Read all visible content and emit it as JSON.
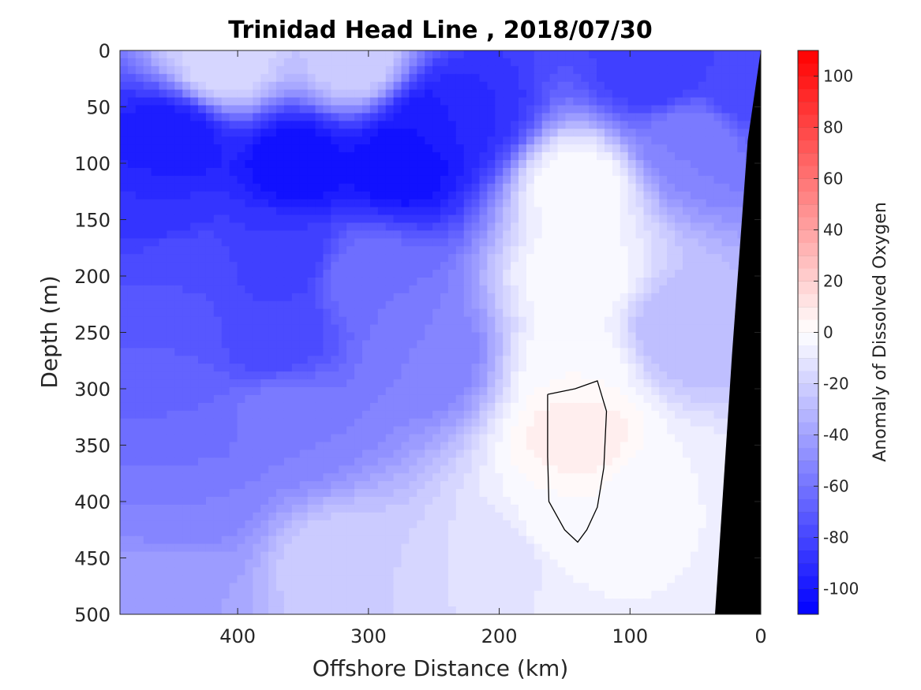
{
  "chart_data": {
    "type": "heatmap",
    "title": "Trinidad Head Line , 2018/07/30",
    "xlabel": "Offshore Distance (km)",
    "ylabel": "Depth (m)",
    "colorbar_label": "Anomaly of Dissolved Oxygen",
    "xlim": [
      0,
      490
    ],
    "x_reversed": true,
    "ylim": [
      0,
      500
    ],
    "y_reversed": true,
    "x_ticks": [
      "400",
      "300",
      "200",
      "100",
      "0"
    ],
    "x_tick_values": [
      400,
      300,
      200,
      100,
      0
    ],
    "y_ticks": [
      "0",
      "50",
      "100",
      "150",
      "200",
      "250",
      "300",
      "350",
      "400",
      "450",
      "500"
    ],
    "y_tick_values": [
      0,
      50,
      100,
      150,
      200,
      250,
      300,
      350,
      400,
      450,
      500
    ],
    "clim": [
      -110,
      110
    ],
    "colorbar_ticks": [
      "100",
      "80",
      "60",
      "40",
      "20",
      "0",
      "-20",
      "-40",
      "-60",
      "-80",
      "-100"
    ],
    "colorbar_tick_values": [
      100,
      80,
      60,
      40,
      20,
      0,
      -20,
      -40,
      -60,
      -80,
      -100
    ],
    "contour_step": 5,
    "colormap": {
      "low": "#0000ff",
      "mid": "#ffffff",
      "high": "#ff0000"
    },
    "bathymetry_color": "#000000",
    "zero_contour_color": "#000000",
    "grid": false,
    "features": [
      {
        "x": 450,
        "depth": 80,
        "value": -100
      },
      {
        "x": 458,
        "depth": 140,
        "value": -90
      },
      {
        "x": 443,
        "depth": 190,
        "value": -75
      },
      {
        "x": 455,
        "depth": 260,
        "value": -70
      },
      {
        "x": 445,
        "depth": 330,
        "value": -65
      },
      {
        "x": 445,
        "depth": 400,
        "value": -55
      },
      {
        "x": 450,
        "depth": 480,
        "value": -40
      },
      {
        "x": 355,
        "depth": 100,
        "value": -105
      },
      {
        "x": 365,
        "depth": 180,
        "value": -85
      },
      {
        "x": 372,
        "depth": 250,
        "value": -80
      },
      {
        "x": 360,
        "depth": 330,
        "value": -55
      },
      {
        "x": 275,
        "depth": 100,
        "value": -105
      },
      {
        "x": 250,
        "depth": 65,
        "value": -100
      },
      {
        "x": 225,
        "depth": 55,
        "value": -90
      },
      {
        "x": 300,
        "depth": 200,
        "value": -60
      },
      {
        "x": 255,
        "depth": 270,
        "value": -55
      },
      {
        "x": 80,
        "depth": 20,
        "value": -85
      },
      {
        "x": 10,
        "depth": 30,
        "value": -80
      },
      {
        "x": 55,
        "depth": 80,
        "value": -55
      },
      {
        "x": 140,
        "depth": 340,
        "value": 8
      },
      {
        "x": 140,
        "depth": 280,
        "value": 0
      },
      {
        "x": 140,
        "depth": 200,
        "value": 0
      },
      {
        "x": 140,
        "depth": 120,
        "value": 0
      },
      {
        "x": 145,
        "depth": 420,
        "value": 0
      },
      {
        "x": 135,
        "depth": 470,
        "value": -5
      },
      {
        "x": 310,
        "depth": 10,
        "value": -20
      },
      {
        "x": 410,
        "depth": 10,
        "value": -15
      },
      {
        "x": 70,
        "depth": 400,
        "value": -5
      },
      {
        "x": 60,
        "depth": 250,
        "value": -30
      },
      {
        "x": 320,
        "depth": 460,
        "value": -20
      },
      {
        "x": 200,
        "depth": 460,
        "value": -15
      }
    ],
    "zero_contour": [
      [
        163,
        305
      ],
      [
        142,
        300
      ],
      [
        125,
        293
      ],
      [
        118,
        320
      ],
      [
        120,
        370
      ],
      [
        125,
        405
      ],
      [
        133,
        425
      ],
      [
        140,
        436
      ],
      [
        150,
        425
      ],
      [
        162,
        400
      ],
      [
        163,
        360
      ],
      [
        163,
        305
      ]
    ],
    "bathymetry": [
      [
        0,
        0
      ],
      [
        10,
        80
      ],
      [
        22,
        270
      ],
      [
        35,
        500
      ],
      [
        0,
        500
      ]
    ]
  }
}
